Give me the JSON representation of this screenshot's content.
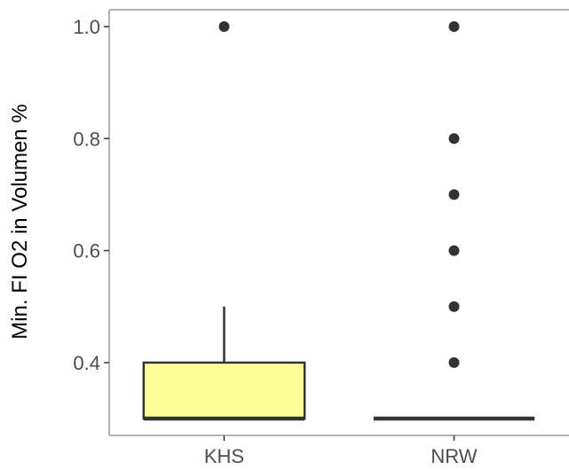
{
  "chart_data": {
    "type": "box",
    "title": "",
    "xlabel": "",
    "ylabel": "Min. FI O2 in Volumen %",
    "categories": [
      "KHS",
      "NRW"
    ],
    "ylim": [
      0.27,
      1.03
    ],
    "yticks": [
      0.4,
      0.6,
      0.8,
      1.0
    ],
    "ytick_labels": [
      "0.4",
      "0.6",
      "0.8",
      "1.0"
    ],
    "grid": false,
    "legend": "none",
    "boxes": [
      {
        "category": "KHS",
        "whisker_low": 0.3,
        "q1": 0.3,
        "median": 0.3,
        "q3": 0.4,
        "whisker_high": 0.5,
        "outliers": [
          1.0
        ],
        "fill": "#ffff99"
      },
      {
        "category": "NRW",
        "whisker_low": 0.3,
        "q1": 0.3,
        "median": 0.3,
        "q3": 0.3,
        "whisker_high": 0.3,
        "outliers": [
          0.4,
          0.5,
          0.6,
          0.7,
          0.8,
          1.0
        ],
        "fill": "#ffff99"
      }
    ],
    "colors": {
      "box_line": "#333333",
      "outlier": "#333333",
      "axis": "#b3b3b3",
      "tick_text": "#4d4d4d"
    }
  }
}
